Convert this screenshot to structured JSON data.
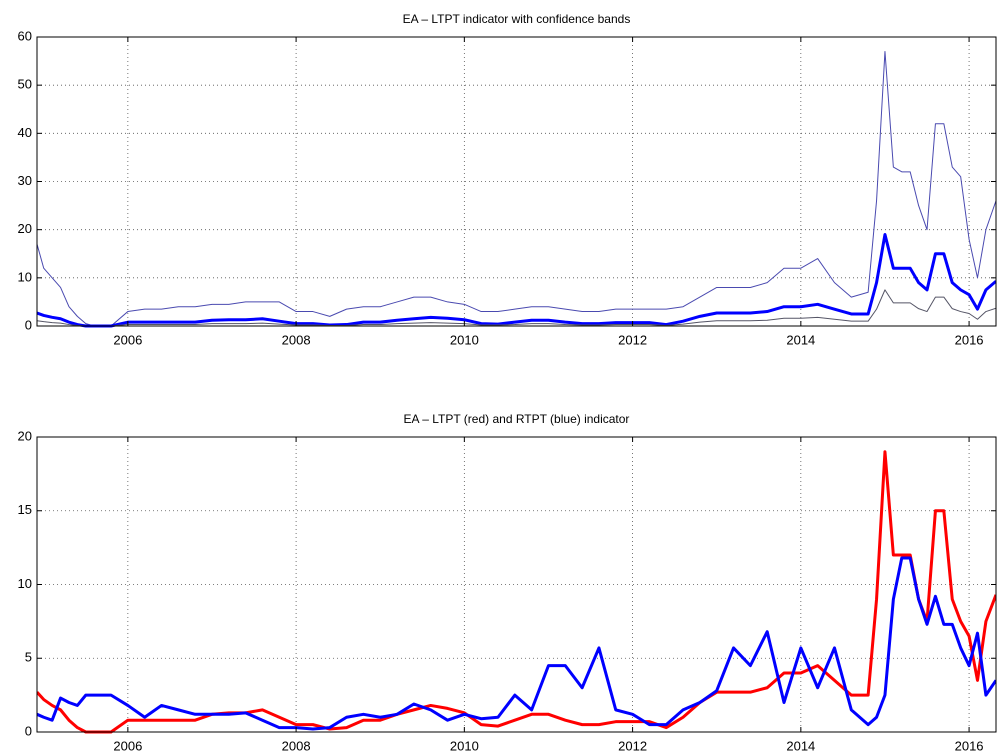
{
  "chart_data": [
    {
      "type": "line",
      "title": "EA – LTPT indicator with confidence bands",
      "x": [
        2004.92,
        2005.0,
        2005.1,
        2005.2,
        2005.3,
        2005.4,
        2005.5,
        2005.6,
        2005.7,
        2005.8,
        2006.0,
        2006.2,
        2006.4,
        2006.6,
        2006.8,
        2007.0,
        2007.2,
        2007.4,
        2007.6,
        2007.8,
        2008.0,
        2008.2,
        2008.4,
        2008.6,
        2008.8,
        2009.0,
        2009.2,
        2009.4,
        2009.6,
        2009.8,
        2010.0,
        2010.2,
        2010.4,
        2010.6,
        2010.8,
        2011.0,
        2011.2,
        2011.4,
        2011.6,
        2011.8,
        2012.0,
        2012.2,
        2012.4,
        2012.6,
        2012.8,
        2013.0,
        2013.2,
        2013.4,
        2013.6,
        2013.8,
        2014.0,
        2014.2,
        2014.4,
        2014.6,
        2014.8,
        2014.9,
        2015.0,
        2015.1,
        2015.2,
        2015.3,
        2015.4,
        2015.5,
        2015.6,
        2015.7,
        2015.8,
        2015.9,
        2016.0,
        2016.1,
        2016.2,
        2016.32
      ],
      "series": [
        {
          "color": "#4a4ab0",
          "width": 1,
          "values": [
            17,
            12,
            10,
            8,
            4,
            2,
            0.5,
            0,
            0,
            0,
            3,
            3.5,
            3.5,
            4,
            4,
            4.5,
            4.5,
            5,
            5,
            5,
            3,
            3,
            2,
            3.5,
            4,
            4,
            5,
            6,
            6,
            5,
            4.5,
            3,
            3,
            3.5,
            4,
            4,
            3.5,
            3,
            3,
            3.5,
            3.5,
            3.5,
            3.5,
            4,
            6,
            8,
            8,
            8,
            9,
            12,
            12,
            14,
            9,
            6,
            7,
            26,
            57,
            33,
            32,
            32,
            25,
            20,
            42,
            42,
            33,
            31,
            18,
            10,
            20,
            26
          ]
        },
        {
          "color": "#0000ff",
          "width": 3,
          "values": [
            2.7,
            2.2,
            1.8,
            1.5,
            0.8,
            0.3,
            0,
            0,
            0,
            0,
            0.8,
            0.8,
            0.8,
            0.8,
            0.8,
            1.2,
            1.3,
            1.3,
            1.5,
            1.0,
            0.5,
            0.5,
            0.2,
            0.3,
            0.8,
            0.8,
            1.2,
            1.5,
            1.8,
            1.6,
            1.3,
            0.5,
            0.4,
            0.8,
            1.2,
            1.2,
            0.8,
            0.5,
            0.5,
            0.7,
            0.7,
            0.7,
            0.3,
            1.0,
            2.0,
            2.7,
            2.7,
            2.7,
            3.0,
            4.0,
            4.0,
            4.5,
            3.5,
            2.5,
            2.5,
            9,
            19,
            12,
            12,
            12,
            9,
            7.5,
            15,
            15,
            9,
            7.5,
            6.5,
            3.5,
            7.5,
            9.3
          ]
        },
        {
          "color": "#555566",
          "width": 1,
          "values": [
            1.1,
            0.9,
            0.7,
            0.6,
            0.3,
            0.1,
            0,
            0,
            0,
            0,
            0.3,
            0.3,
            0.3,
            0.3,
            0.3,
            0.5,
            0.5,
            0.5,
            0.6,
            0.4,
            0.2,
            0.2,
            0.1,
            0.1,
            0.3,
            0.3,
            0.5,
            0.6,
            0.7,
            0.6,
            0.5,
            0.2,
            0.2,
            0.3,
            0.5,
            0.5,
            0.3,
            0.2,
            0.2,
            0.3,
            0.3,
            0.3,
            0.1,
            0.4,
            0.8,
            1.1,
            1.1,
            1.1,
            1.2,
            1.6,
            1.6,
            1.8,
            1.4,
            1.0,
            1.0,
            3.5,
            7.5,
            4.8,
            4.8,
            4.8,
            3.6,
            3.0,
            6.0,
            6.0,
            3.6,
            3.0,
            2.6,
            1.4,
            3.0,
            3.7
          ]
        }
      ],
      "xlim": [
        2004.92,
        2016.32
      ],
      "ylim": [
        0,
        60
      ],
      "xticks": [
        2006,
        2008,
        2010,
        2012,
        2014,
        2016
      ],
      "yticks": [
        0,
        10,
        20,
        30,
        40,
        50,
        60
      ],
      "grid": true
    },
    {
      "type": "line",
      "title": "EA – LTPT (red) and RTPT (blue) indicator",
      "x": [
        2004.92,
        2005.0,
        2005.1,
        2005.2,
        2005.3,
        2005.4,
        2005.5,
        2005.6,
        2005.7,
        2005.8,
        2006.0,
        2006.2,
        2006.4,
        2006.6,
        2006.8,
        2007.0,
        2007.2,
        2007.4,
        2007.6,
        2007.8,
        2008.0,
        2008.2,
        2008.4,
        2008.6,
        2008.8,
        2009.0,
        2009.2,
        2009.4,
        2009.6,
        2009.8,
        2010.0,
        2010.2,
        2010.4,
        2010.6,
        2010.8,
        2011.0,
        2011.2,
        2011.4,
        2011.6,
        2011.8,
        2012.0,
        2012.2,
        2012.4,
        2012.6,
        2012.8,
        2013.0,
        2013.2,
        2013.4,
        2013.6,
        2013.8,
        2014.0,
        2014.2,
        2014.4,
        2014.6,
        2014.8,
        2014.9,
        2015.0,
        2015.1,
        2015.2,
        2015.3,
        2015.4,
        2015.5,
        2015.6,
        2015.7,
        2015.8,
        2015.9,
        2016.0,
        2016.1,
        2016.2,
        2016.32
      ],
      "series": [
        {
          "color": "#ff0000",
          "width": 3,
          "values": [
            2.7,
            2.2,
            1.8,
            1.5,
            0.8,
            0.3,
            0,
            0,
            0,
            0,
            0.8,
            0.8,
            0.8,
            0.8,
            0.8,
            1.2,
            1.3,
            1.3,
            1.5,
            1.0,
            0.5,
            0.5,
            0.2,
            0.3,
            0.8,
            0.8,
            1.2,
            1.5,
            1.8,
            1.6,
            1.3,
            0.5,
            0.4,
            0.8,
            1.2,
            1.2,
            0.8,
            0.5,
            0.5,
            0.7,
            0.7,
            0.7,
            0.3,
            1.0,
            2.0,
            2.7,
            2.7,
            2.7,
            3.0,
            4.0,
            4.0,
            4.5,
            3.5,
            2.5,
            2.5,
            9,
            19,
            12,
            12,
            12,
            9,
            7.5,
            15,
            15,
            9,
            7.5,
            6.5,
            3.5,
            7.5,
            9.3
          ]
        },
        {
          "color": "#0000ff",
          "width": 3,
          "values": [
            1.2,
            1.0,
            0.8,
            2.3,
            2.0,
            1.8,
            2.5,
            2.5,
            2.5,
            2.5,
            1.8,
            1.0,
            1.8,
            1.5,
            1.2,
            1.2,
            1.2,
            1.3,
            0.8,
            0.3,
            0.3,
            0.2,
            0.3,
            1.0,
            1.2,
            1.0,
            1.2,
            1.9,
            1.5,
            0.8,
            1.2,
            0.9,
            1.0,
            2.5,
            1.5,
            4.5,
            4.5,
            3.0,
            5.7,
            1.5,
            1.2,
            0.5,
            0.5,
            1.5,
            2.0,
            2.8,
            5.7,
            4.5,
            6.8,
            2.0,
            5.7,
            3.0,
            5.7,
            1.5,
            0.5,
            1.0,
            2.5,
            9.0,
            11.8,
            11.8,
            9.0,
            7.3,
            9.2,
            7.3,
            7.3,
            5.7,
            4.5,
            6.7,
            2.5,
            3.5
          ]
        }
      ],
      "xlim": [
        2004.92,
        2016.32
      ],
      "ylim": [
        0,
        20
      ],
      "xticks": [
        2006,
        2008,
        2010,
        2012,
        2014,
        2016
      ],
      "yticks": [
        0,
        5,
        10,
        15,
        20
      ],
      "grid": true
    }
  ]
}
